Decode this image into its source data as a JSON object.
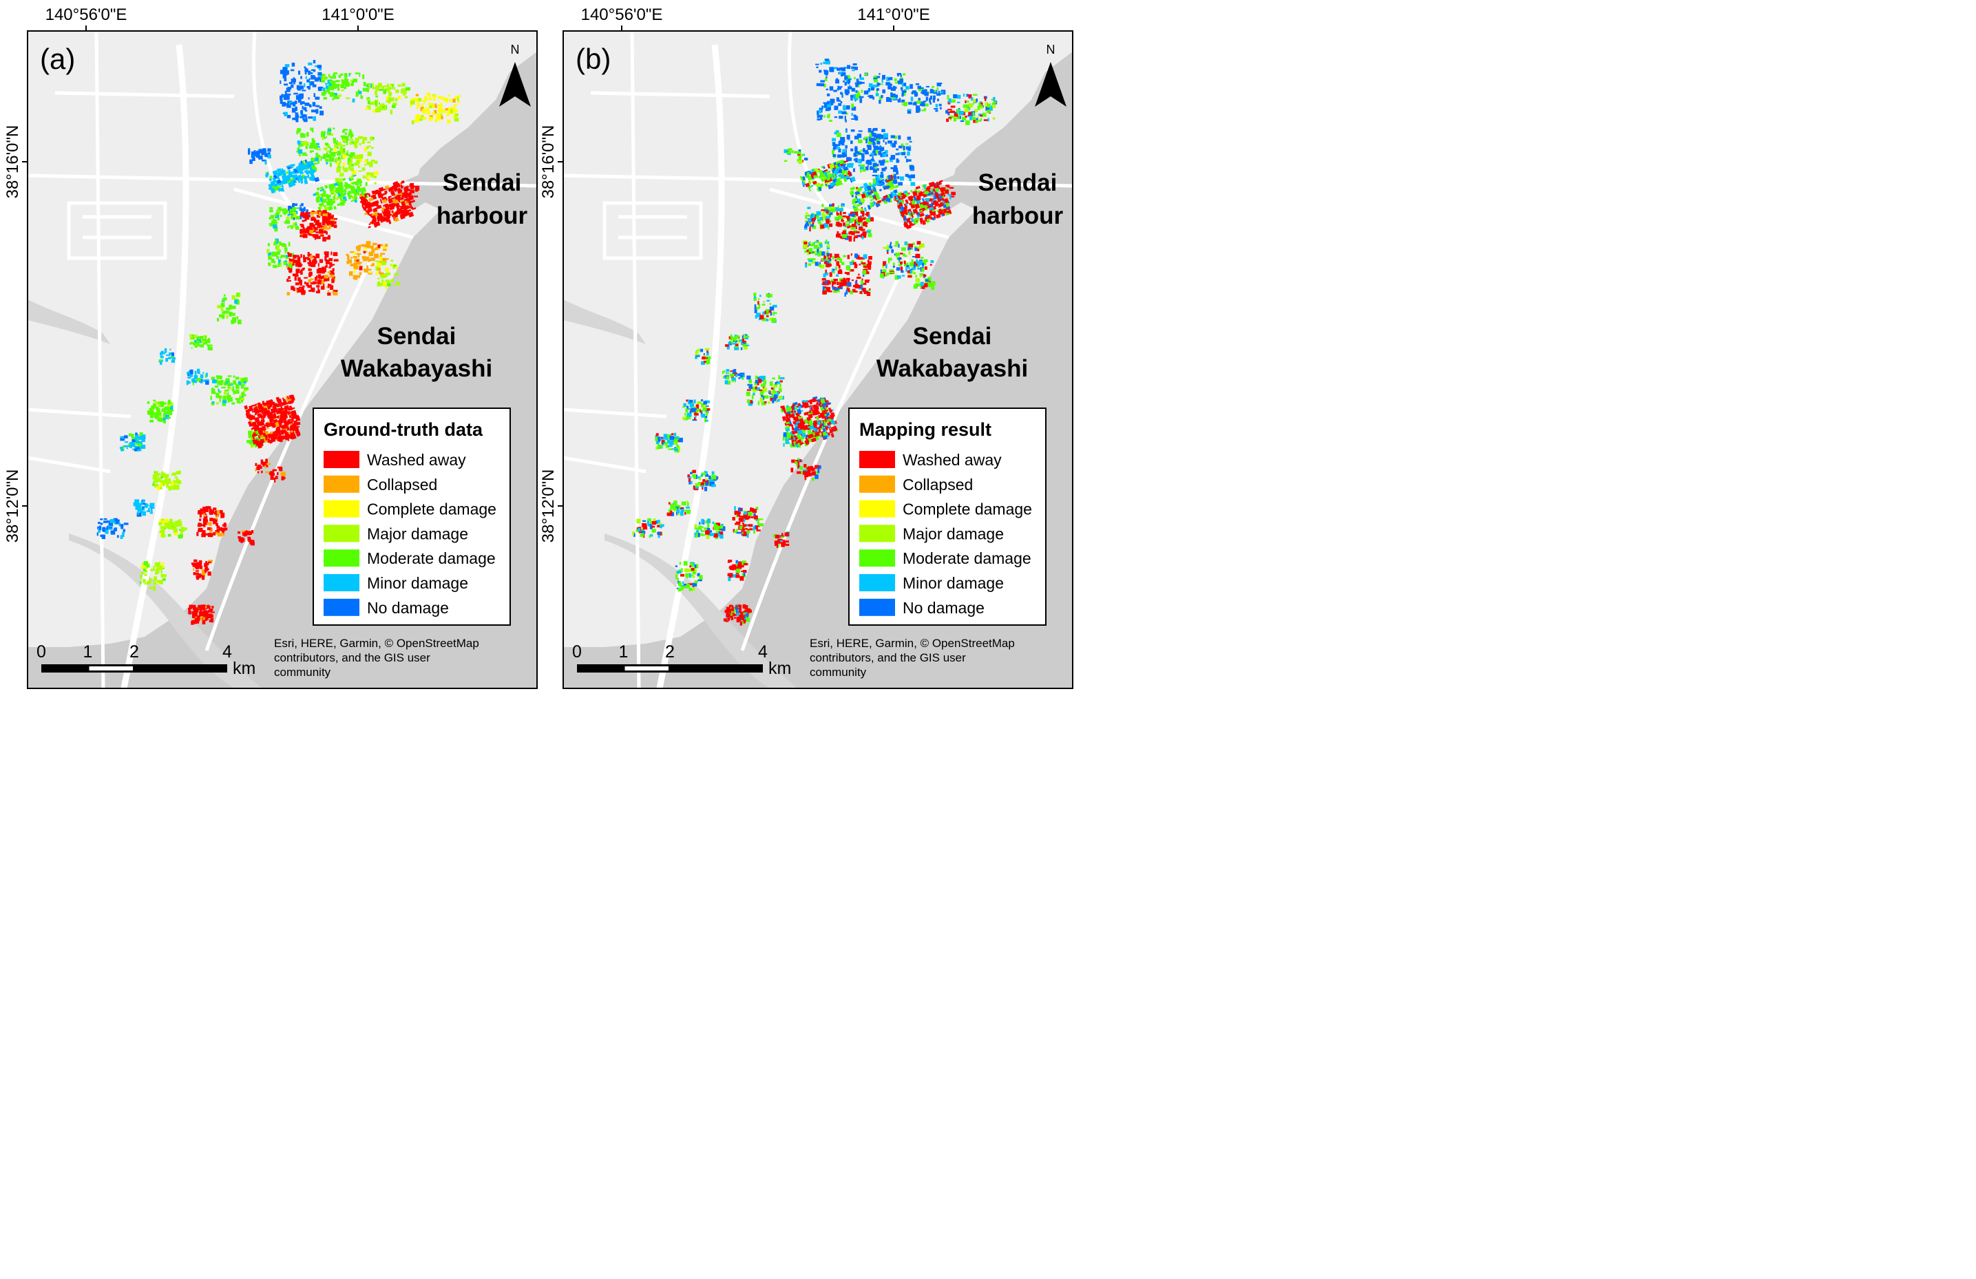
{
  "panels": [
    {
      "label": "(a)",
      "legend_title": "Ground-truth data",
      "place_harbour": [
        "Sendai",
        "harbour"
      ],
      "place_area": [
        "Sendai",
        "Wakabayashi"
      ],
      "lon_ticks": [
        "140°56'0\"E",
        "141°0'0\"E"
      ],
      "lat_ticks": [
        "38°16'0\"N",
        "38°12'0\"N"
      ],
      "north": "N",
      "scale_labels": [
        "0",
        "1",
        "2",
        "4"
      ],
      "scale_unit": "km",
      "attribution": [
        "Esri, HERE, Garmin, © OpenStreetMap",
        "contributors, and the GIS user",
        "community"
      ]
    },
    {
      "label": "(b)",
      "legend_title": "Mapping result",
      "place_harbour": [
        "Sendai",
        "harbour"
      ],
      "place_area": [
        "Sendai",
        "Wakabayashi"
      ],
      "lon_ticks": [
        "140°56'0\"E",
        "141°0'0\"E"
      ],
      "lat_ticks": [
        "38°16'0\"N",
        "38°12'0\"N"
      ],
      "north": "N",
      "scale_labels": [
        "0",
        "1",
        "2",
        "4"
      ],
      "scale_unit": "km",
      "attribution": [
        "Esri, HERE, Garmin, © OpenStreetMap",
        "contributors, and the GIS user",
        "community"
      ]
    }
  ],
  "legend_classes": [
    {
      "label": "Washed away",
      "color": "#ff0000"
    },
    {
      "label": "Collapsed",
      "color": "#ffaa00"
    },
    {
      "label": "Complete damage",
      "color": "#ffff00"
    },
    {
      "label": "Major damage",
      "color": "#aaff00"
    },
    {
      "label": "Moderate damage",
      "color": "#55ff00"
    },
    {
      "label": "Minor damage",
      "color": "#00c5ff"
    },
    {
      "label": "No damage",
      "color": "#0070ff"
    }
  ],
  "colors": {
    "sea": "#cccccd",
    "land": "#eeeeee",
    "road": "#ffffff",
    "water_inland": "#d6d6d6"
  }
}
